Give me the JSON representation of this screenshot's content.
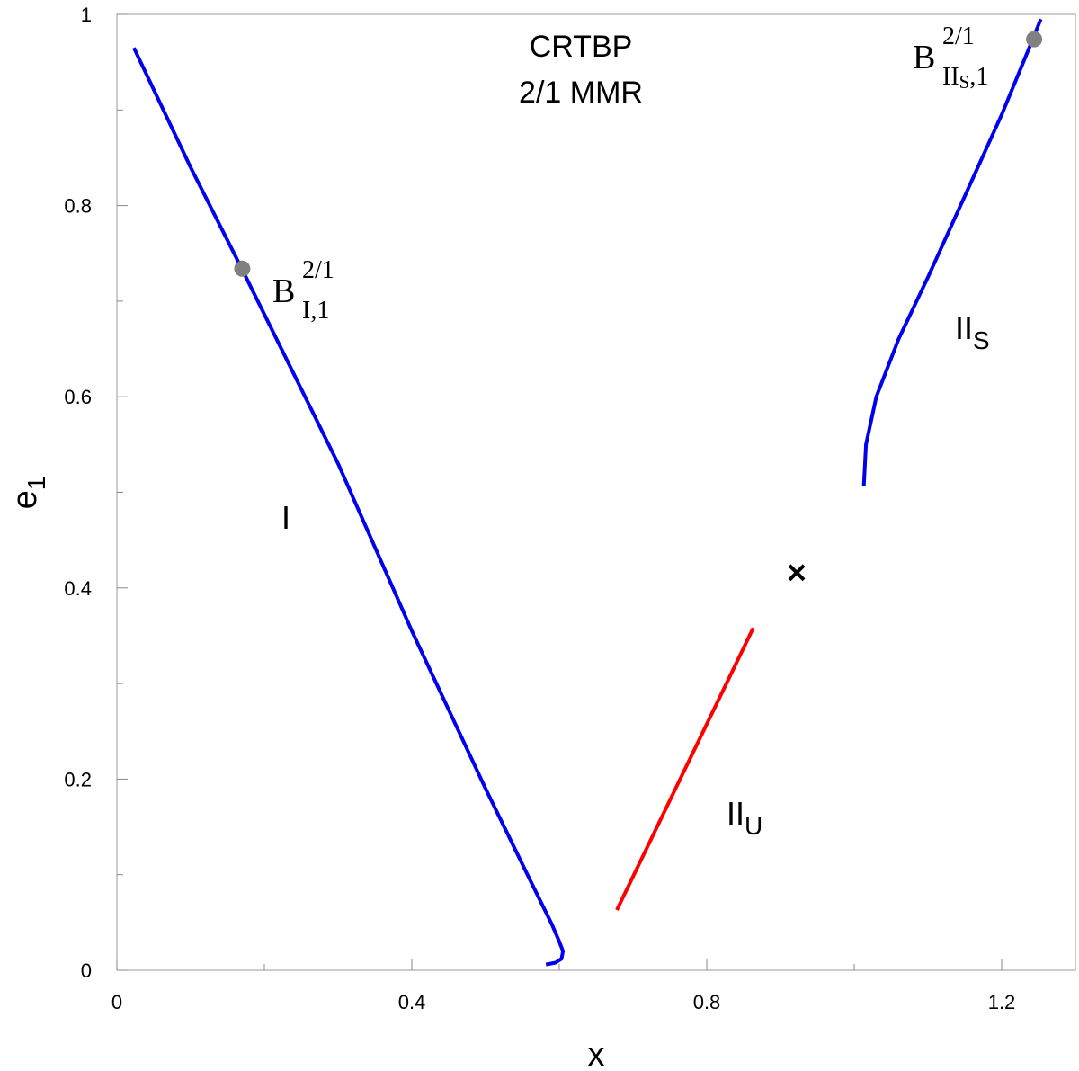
{
  "chart_data": {
    "type": "line",
    "title": "CRTBP",
    "subtitle": "2/1 MMR",
    "xlabel": "x",
    "ylabel": "e",
    "ylabel_sub": "1",
    "xlim": [
      0.0,
      1.3
    ],
    "ylim": [
      0.0,
      1.0
    ],
    "x_ticks": [
      0,
      0.4,
      0.8,
      1.2
    ],
    "x_tick_labels": [
      "0",
      "0.4",
      "0.8",
      "1.2"
    ],
    "x_minor_ticks": [
      0.2,
      0.6,
      1.0
    ],
    "y_ticks": [
      0,
      0.2,
      0.4,
      0.6,
      0.8,
      1
    ],
    "y_tick_labels": [
      "0",
      "0.2",
      "0.4",
      "0.6",
      "0.8",
      "1"
    ],
    "y_minor_ticks": [
      0.1,
      0.3,
      0.5,
      0.7,
      0.9
    ],
    "grid": false,
    "series": [
      {
        "name": "I",
        "color": "#0000ee",
        "points": [
          [
            0.023,
            0.965
          ],
          [
            0.1,
            0.84
          ],
          [
            0.17,
            0.733
          ],
          [
            0.3,
            0.53
          ],
          [
            0.4,
            0.355
          ],
          [
            0.5,
            0.19
          ],
          [
            0.56,
            0.095
          ],
          [
            0.59,
            0.048
          ],
          [
            0.6,
            0.03
          ],
          [
            0.605,
            0.02
          ],
          [
            0.603,
            0.012
          ],
          [
            0.595,
            0.008
          ],
          [
            0.582,
            0.006
          ]
        ]
      },
      {
        "name": "II",
        "name_sub": "U",
        "color": "#ff0000",
        "points": [
          [
            0.678,
            0.063
          ],
          [
            0.863,
            0.358
          ]
        ]
      },
      {
        "name": "II",
        "name_sub": "S",
        "color": "#0000ee",
        "points": [
          [
            1.013,
            0.507
          ],
          [
            1.016,
            0.55
          ],
          [
            1.03,
            0.6
          ],
          [
            1.06,
            0.66
          ],
          [
            1.1,
            0.725
          ],
          [
            1.15,
            0.81
          ],
          [
            1.2,
            0.895
          ],
          [
            1.24,
            0.97
          ],
          [
            1.253,
            0.995
          ]
        ]
      }
    ],
    "markers": [
      {
        "type": "dot",
        "x": 0.17,
        "y": 0.734,
        "color": "#808080",
        "label": "B",
        "label_sup": "2/1",
        "label_sub": "I,1"
      },
      {
        "type": "dot",
        "x": 1.244,
        "y": 0.974,
        "color": "#808080",
        "label": "B",
        "label_sup": "2/1",
        "label_sub": "II",
        "label_sub_sub": "S",
        "label_sub_tail": ",1"
      },
      {
        "type": "cross",
        "x": 0.922,
        "y": 0.416,
        "color": "#000000"
      }
    ]
  }
}
